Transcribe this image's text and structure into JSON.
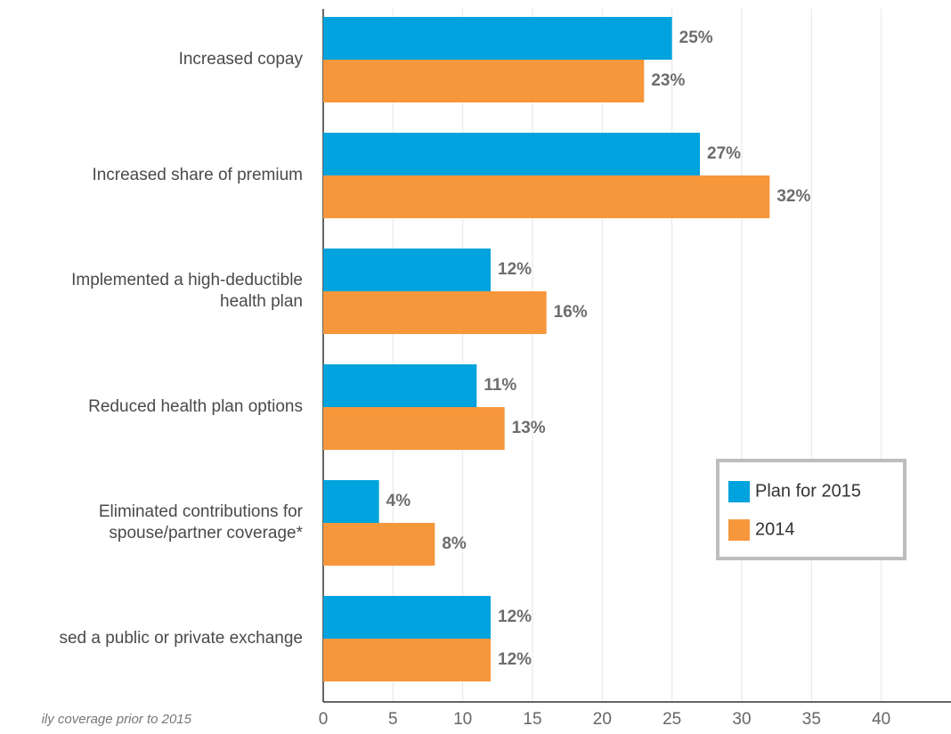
{
  "chart_data": {
    "type": "bar",
    "orientation": "horizontal",
    "categories": [
      "Increased copay",
      "Increased share of premium",
      "Implemented a high-deductible health plan",
      "Reduced health plan options",
      "Eliminated contributions for spouse/partner coverage*",
      "sed a public or private exchange"
    ],
    "series": [
      {
        "name": "Plan for 2015",
        "color": "#00a3dd",
        "values": [
          25,
          27,
          12,
          11,
          4,
          12
        ],
        "value_labels": [
          "25%",
          "27%",
          "12%",
          "11%",
          "4%",
          "12%"
        ]
      },
      {
        "name": "2014",
        "color": "#f7973c",
        "values": [
          23,
          32,
          16,
          13,
          8,
          12
        ],
        "value_labels": [
          "23%",
          "32%",
          "16%",
          "13%",
          "8%",
          "12%"
        ]
      }
    ],
    "xlim": [
      0,
      45
    ],
    "xticks": [
      0,
      5,
      10,
      15,
      20,
      25,
      30,
      35,
      40
    ],
    "grid": true,
    "legend": "right",
    "footnote": "ily coverage prior to 2015"
  }
}
